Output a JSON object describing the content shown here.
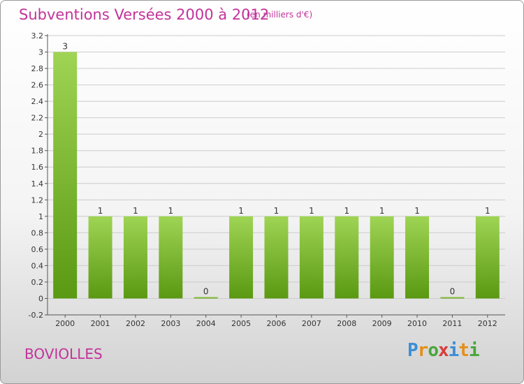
{
  "title": "Subventions Versées 2000 à 2012",
  "subtitle": "(en milliers d'€)",
  "commune": "BOVIOLLES",
  "brand": {
    "letters": [
      "P",
      "r",
      "o",
      "x",
      "i",
      "t",
      "i"
    ],
    "colors": [
      "#3b8ed6",
      "#e58f1a",
      "#4aa63a",
      "#d93a3a",
      "#3b8ed6",
      "#e58f1a",
      "#4aa63a"
    ]
  },
  "colors": {
    "title": "#c2339a",
    "bar_top": "#9fd454",
    "bar_bottom": "#5a9912",
    "grid": "#cccccc"
  },
  "chart_data": {
    "type": "bar",
    "categories": [
      "2000",
      "2001",
      "2002",
      "2003",
      "2004",
      "2005",
      "2006",
      "2007",
      "2008",
      "2009",
      "2010",
      "2011",
      "2012"
    ],
    "values": [
      3,
      1,
      1,
      1,
      0,
      1,
      1,
      1,
      1,
      1,
      1,
      0,
      1
    ],
    "data_labels": [
      "3",
      "1",
      "1",
      "1",
      "0",
      "1",
      "1",
      "1",
      "1",
      "1",
      "1",
      "0",
      "1"
    ],
    "title": "Subventions Versées 2000 à 2012",
    "xlabel": "",
    "ylabel": "",
    "ylim": [
      -0.2,
      3.2
    ],
    "yticks": [
      "-0.2",
      "0",
      "0.2",
      "0.4",
      "0.6",
      "0.8",
      "1",
      "1.2",
      "1.4",
      "1.6",
      "1.8",
      "2",
      "2.2",
      "2.4",
      "2.6",
      "2.8",
      "3",
      "3.2"
    ],
    "grid": true
  }
}
